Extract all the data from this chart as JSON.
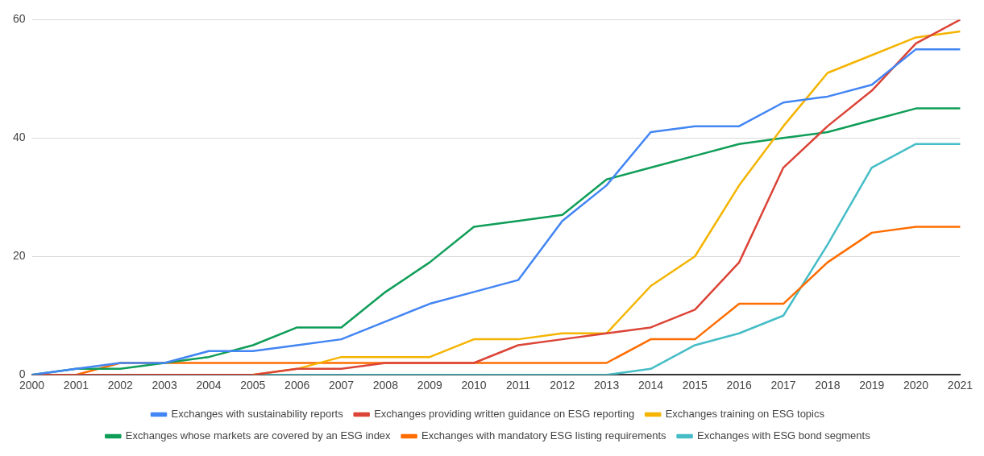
{
  "chart_data": {
    "type": "line",
    "categories": [
      "2000",
      "2001",
      "2002",
      "2003",
      "2004",
      "2005",
      "2006",
      "2007",
      "2008",
      "2009",
      "2010",
      "2011",
      "2012",
      "2013",
      "2014",
      "2015",
      "2016",
      "2017",
      "2018",
      "2019",
      "2020",
      "2021"
    ],
    "series": [
      {
        "name": "Exchanges with sustainability reports",
        "color": "#4285f4",
        "values": [
          0,
          1,
          2,
          2,
          4,
          4,
          5,
          6,
          9,
          12,
          14,
          16,
          26,
          32,
          41,
          42,
          42,
          46,
          47,
          49,
          55,
          55
        ]
      },
      {
        "name": "Exchanges providing written guidance on ESG reporting",
        "color": "#db4437",
        "values": [
          0,
          0,
          0,
          0,
          0,
          0,
          1,
          1,
          2,
          2,
          2,
          5,
          6,
          7,
          8,
          11,
          19,
          35,
          42,
          48,
          56,
          60
        ]
      },
      {
        "name": "Exchanges training on ESG topics",
        "color": "#f4b400",
        "values": [
          null,
          null,
          null,
          null,
          null,
          0,
          1,
          3,
          3,
          3,
          6,
          6,
          7,
          7,
          15,
          20,
          32,
          42,
          51,
          54,
          57,
          58
        ]
      },
      {
        "name": "Exchanges whose markets are covered by an ESG index",
        "color": "#0f9d58",
        "values": [
          0,
          1,
          1,
          2,
          3,
          5,
          8,
          8,
          14,
          19,
          25,
          26,
          27,
          33,
          35,
          37,
          39,
          40,
          41,
          43,
          45,
          45
        ]
      },
      {
        "name": "Exchanges with mandatory ESG listing requirements",
        "color": "#ff6d01",
        "values": [
          0,
          0,
          2,
          2,
          2,
          2,
          2,
          2,
          2,
          2,
          2,
          2,
          2,
          2,
          6,
          6,
          12,
          12,
          19,
          24,
          25,
          25
        ]
      },
      {
        "name": "Exchanges with ESG bond segments",
        "color": "#46bdc6",
        "values": [
          0,
          0,
          0,
          0,
          0,
          0,
          0,
          0,
          0,
          0,
          0,
          0,
          0,
          0,
          1,
          5,
          7,
          10,
          22,
          35,
          39,
          39
        ]
      }
    ],
    "ylim": [
      0,
      60
    ],
    "yticks": [
      0,
      20,
      40,
      60
    ],
    "grid": "y",
    "legend": "bottom",
    "marker": "none",
    "line_style": "solid"
  }
}
